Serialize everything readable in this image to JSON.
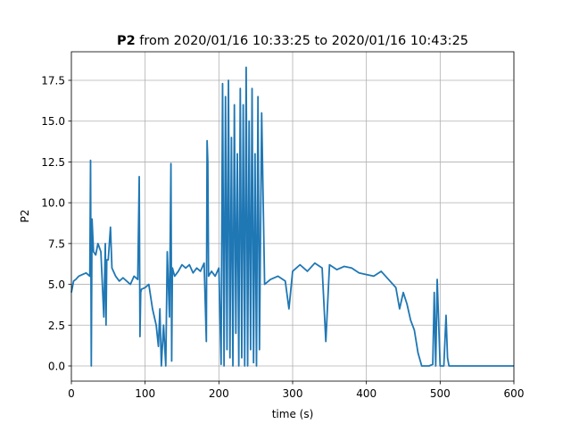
{
  "chart_data": {
    "type": "line",
    "title": [
      "P2",
      "from 2020/01/16 10:33:25 to 2020/01/16 10:43:25"
    ],
    "xlabel": "time (s)",
    "ylabel": "P2",
    "x": [
      0,
      3,
      6,
      10,
      15,
      20,
      25,
      26,
      27,
      28,
      29,
      30,
      33,
      36,
      40,
      44,
      46,
      47,
      48,
      50,
      53,
      55,
      60,
      65,
      70,
      75,
      80,
      85,
      90,
      92,
      93,
      94,
      95,
      100,
      105,
      110,
      115,
      118,
      120,
      122,
      125,
      128,
      130,
      133,
      135,
      136,
      137,
      140,
      145,
      150,
      155,
      160,
      165,
      170,
      175,
      180,
      183,
      184,
      185,
      186,
      190,
      195,
      200,
      203,
      205,
      207,
      209,
      211,
      213,
      215,
      217,
      219,
      221,
      223,
      225,
      227,
      229,
      231,
      233,
      235,
      237,
      239,
      241,
      243,
      245,
      247,
      249,
      251,
      253,
      255,
      258,
      262,
      270,
      280,
      290,
      295,
      300,
      310,
      320,
      330,
      340,
      345,
      350,
      360,
      370,
      380,
      390,
      400,
      410,
      420,
      430,
      440,
      445,
      450,
      455,
      460,
      465,
      470,
      475,
      480,
      485,
      490,
      492,
      494,
      496,
      500,
      505,
      508,
      510,
      512,
      520,
      540,
      560,
      580,
      600
    ],
    "series": [
      {
        "name": "P2",
        "color": "#1f77b4",
        "values": [
          4.5,
          5.2,
          5.3,
          5.5,
          5.6,
          5.7,
          5.5,
          12.6,
          0,
          9,
          8,
          7,
          6.8,
          7.5,
          7,
          3,
          7.5,
          2.5,
          6.5,
          6.5,
          8.5,
          6,
          5.5,
          5.2,
          5.4,
          5.2,
          5,
          5.5,
          5.3,
          11.6,
          1.8,
          4.5,
          4.7,
          4.8,
          5,
          3.5,
          2.5,
          1.2,
          3.5,
          0,
          2.5,
          0,
          7,
          3,
          12.4,
          0.3,
          6,
          5.5,
          5.8,
          6.2,
          6,
          6.2,
          5.7,
          6,
          5.8,
          6.3,
          1.5,
          13.8,
          12.5,
          5.5,
          5.8,
          5.5,
          6,
          0.1,
          17.3,
          0,
          16.5,
          1,
          17.5,
          0.5,
          14,
          0,
          16,
          2,
          13,
          0,
          17,
          0.5,
          16,
          0,
          18.3,
          0,
          15,
          1,
          17,
          0.2,
          13,
          0,
          16.5,
          1,
          15.5,
          5,
          5.3,
          5.5,
          5.2,
          3.5,
          5.8,
          6.2,
          5.8,
          6.3,
          6,
          1.5,
          6.2,
          5.9,
          6.1,
          6,
          5.7,
          5.6,
          5.5,
          5.8,
          5.3,
          4.8,
          3.5,
          4.5,
          3.8,
          2.8,
          2.2,
          0.8,
          0,
          0,
          0,
          0.1,
          4.5,
          0,
          5.3,
          0,
          0,
          3.1,
          0.5,
          0,
          0,
          0,
          0,
          0,
          0
        ]
      }
    ],
    "xlim": [
      0,
      600
    ],
    "xticks": [
      0,
      100,
      200,
      300,
      400,
      500,
      600
    ],
    "ylim": [
      -0.93,
      19.25
    ],
    "yticks": [
      {
        "value": 0,
        "label": "0.0"
      },
      2.5,
      {
        "value": 5,
        "label": "5.0"
      },
      7.5,
      {
        "value": 10,
        "label": "10.0"
      },
      12.5,
      {
        "value": 15,
        "label": "15.0"
      },
      17.5
    ],
    "grid": true
  }
}
